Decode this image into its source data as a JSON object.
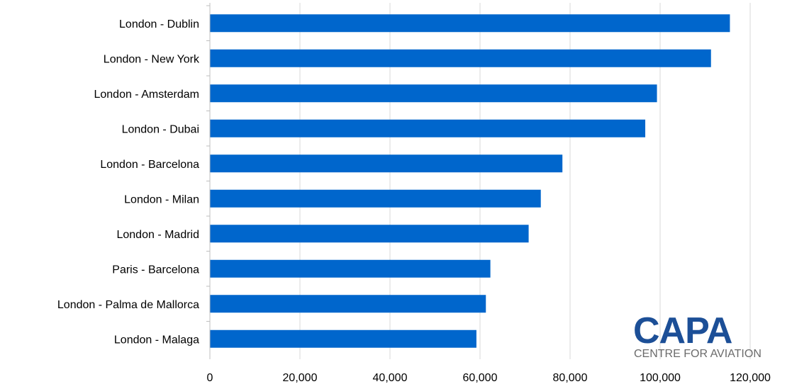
{
  "chart_data": {
    "type": "bar",
    "orientation": "horizontal",
    "categories": [
      "London - Dublin",
      "London - New York",
      "London - Amsterdam",
      "London - Dubai",
      "London - Barcelona",
      "London - Milan",
      "London - Madrid",
      "Paris - Barcelona",
      "London - Palma de Mallorca",
      "London - Malaga"
    ],
    "values": [
      115500,
      111300,
      99300,
      96700,
      78300,
      73500,
      70800,
      62300,
      61300,
      59200
    ],
    "xlim": [
      0,
      120000
    ],
    "xticks": [
      "0",
      "20,000",
      "40,000",
      "60,000",
      "80,000",
      "100,000",
      "120,000"
    ],
    "grid": true,
    "bar_color": "#0066cc",
    "grid_color": "#d9d9d9"
  },
  "logo": {
    "name": "CAPA",
    "tagline": "CENTRE FOR AVIATION",
    "color": "#1c4f97",
    "tagline_color": "#6b6b6b"
  }
}
